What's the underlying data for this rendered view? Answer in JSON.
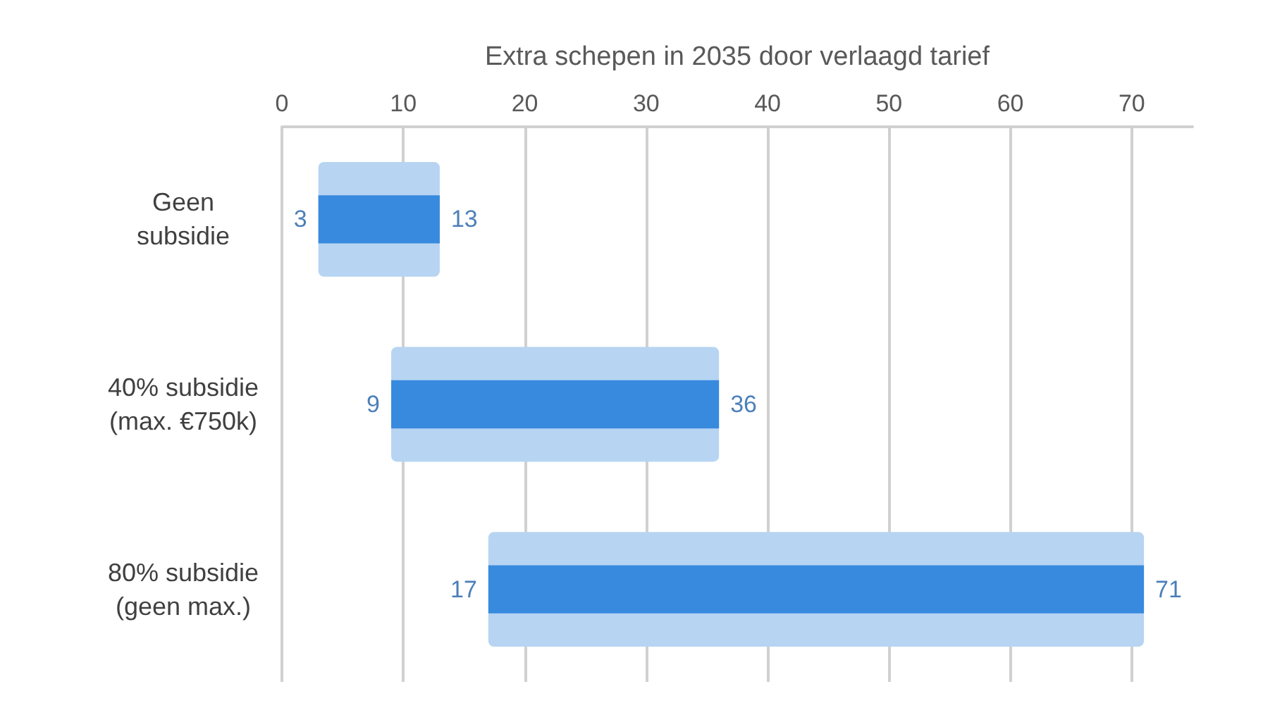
{
  "chart_data": {
    "type": "bar",
    "orientation": "horizontal",
    "xlabel": "Extra schepen in 2035 door verlaagd tarief",
    "categories": [
      "Geen\nsubsidie",
      "40% subsidie\n(max. €750k)",
      "80% subsidie\n(geen max.)"
    ],
    "series": [
      {
        "color": "#b7d4f2",
        "base": [
          3,
          9,
          17
        ],
        "values": [
          10,
          27,
          54
        ]
      },
      {
        "color": "#388ade",
        "base": [
          3,
          9,
          17
        ],
        "values": [
          10,
          27,
          54
        ]
      }
    ],
    "annotations": [
      {
        "text": "3",
        "x": 3,
        "y": "Geen\nsubsidie"
      },
      {
        "text": "13",
        "x": 13,
        "y": "Geen\nsubsidie"
      },
      {
        "text": "9",
        "x": 9,
        "y": "40% subsidie\n(max. €750k)"
      },
      {
        "text": "36",
        "x": 36,
        "y": "40% subsidie\n(max. €750k)"
      },
      {
        "text": "17",
        "x": 17,
        "y": "80% subsidie\n(geen max.)"
      },
      {
        "text": "71",
        "x": 71,
        "y": "80% subsidie\n(geen max.)"
      }
    ],
    "xlim": [
      0,
      75
    ],
    "xticks": [
      0,
      10,
      20,
      30,
      40,
      50,
      60,
      70
    ],
    "grid": "x"
  }
}
